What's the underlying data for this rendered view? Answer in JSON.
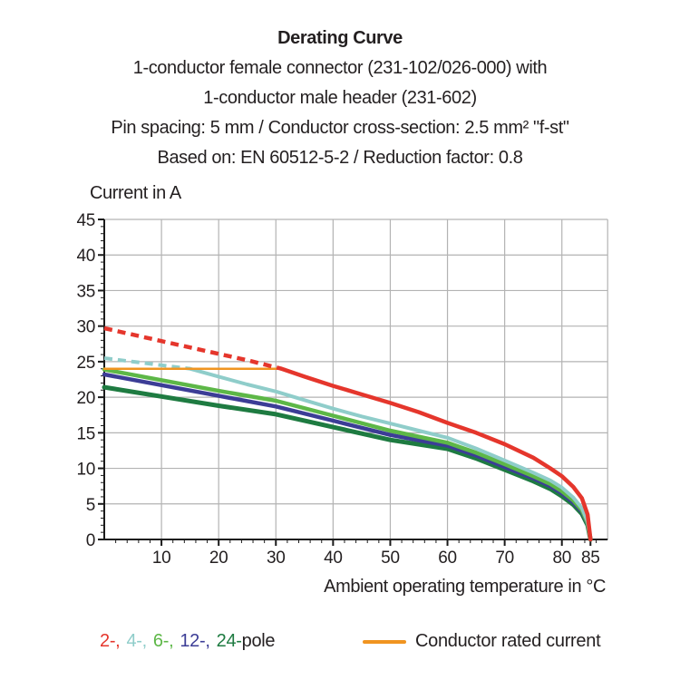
{
  "header": {
    "title": "Derating Curve",
    "line1": "1-conductor female connector (231-102/026-000) with",
    "line2": "1-conductor male header (231-602)",
    "line3": "Pin spacing: 5 mm / Conductor cross-section: 2.5 mm² \"f-st\"",
    "line4": "Based on: EN 60512-5-2 / Reduction factor: 0.8"
  },
  "chart_data": {
    "type": "line",
    "title": "Derating Curve",
    "ylabel": "Current in A",
    "xlabel": "Ambient operating temperature in °C",
    "xlim": [
      0,
      88
    ],
    "ylim": [
      0,
      45
    ],
    "x_major_ticks": [
      10,
      20,
      30,
      40,
      50,
      60,
      70,
      80,
      85
    ],
    "x_minor_step": 2,
    "y_major_ticks": [
      0,
      5,
      10,
      15,
      20,
      25,
      30,
      35,
      40,
      45
    ],
    "y_minor_step": 1,
    "grid": true,
    "grid_color": "#b3b3b3",
    "axis_color": "#1a1a1a",
    "series": [
      {
        "name": "24-pole",
        "color": "#1E7B41",
        "width": 5,
        "style": "solid",
        "points": [
          [
            0,
            21.4
          ],
          [
            10,
            20.1
          ],
          [
            20,
            18.8
          ],
          [
            30,
            17.6
          ],
          [
            40,
            15.8
          ],
          [
            50,
            14.0
          ],
          [
            60,
            12.75
          ],
          [
            65,
            11.4
          ],
          [
            70,
            9.8
          ],
          [
            75,
            8.2
          ],
          [
            78,
            7.1
          ],
          [
            80,
            6.1
          ],
          [
            82,
            4.9
          ],
          [
            83.5,
            3.6
          ],
          [
            84.5,
            2.0
          ],
          [
            85,
            0
          ]
        ]
      },
      {
        "name": "12-pole",
        "color": "#3C3D96",
        "width": 4.5,
        "style": "solid",
        "points": [
          [
            0,
            23.2
          ],
          [
            10,
            21.7
          ],
          [
            20,
            20.2
          ],
          [
            30,
            18.7
          ],
          [
            40,
            16.7
          ],
          [
            50,
            14.7
          ],
          [
            60,
            13.2
          ],
          [
            65,
            11.8
          ],
          [
            70,
            10.2
          ],
          [
            75,
            8.6
          ],
          [
            78,
            7.5
          ],
          [
            80,
            6.5
          ],
          [
            82,
            5.2
          ],
          [
            83.5,
            3.9
          ],
          [
            84.5,
            2.2
          ],
          [
            85,
            0
          ]
        ]
      },
      {
        "name": "6-pole",
        "color": "#5DB747",
        "width": 4.5,
        "style": "solid",
        "points": [
          [
            0,
            23.9
          ],
          [
            10,
            22.4
          ],
          [
            20,
            20.9
          ],
          [
            30,
            19.5
          ],
          [
            40,
            17.4
          ],
          [
            50,
            15.3
          ],
          [
            60,
            13.6
          ],
          [
            65,
            12.2
          ],
          [
            70,
            10.6
          ],
          [
            75,
            8.9
          ],
          [
            78,
            7.8
          ],
          [
            80,
            6.8
          ],
          [
            82,
            5.5
          ],
          [
            83.5,
            4.1
          ],
          [
            84.5,
            2.3
          ],
          [
            85,
            0
          ]
        ]
      },
      {
        "name": "4-pole",
        "color": "#8FCDCA",
        "width": 4,
        "style": "dashed-then-solid",
        "dashed_points": [
          [
            0,
            25.5
          ],
          [
            5,
            25.0
          ],
          [
            10,
            24.5
          ],
          [
            15,
            24.0
          ]
        ],
        "points": [
          [
            15,
            24.0
          ],
          [
            20,
            22.9
          ],
          [
            25,
            21.8
          ],
          [
            30,
            20.8
          ],
          [
            35,
            19.6
          ],
          [
            40,
            18.4
          ],
          [
            45,
            17.3
          ],
          [
            50,
            16.3
          ],
          [
            55,
            15.3
          ],
          [
            60,
            14.3
          ],
          [
            65,
            12.8
          ],
          [
            70,
            11.1
          ],
          [
            75,
            9.4
          ],
          [
            78,
            8.3
          ],
          [
            80,
            7.3
          ],
          [
            82,
            5.9
          ],
          [
            83.5,
            4.4
          ],
          [
            84.5,
            2.5
          ],
          [
            85,
            0
          ]
        ]
      },
      {
        "name": "Conductor rated current",
        "color": "#F09420",
        "width": 2.5,
        "style": "solid",
        "points": [
          [
            0,
            24
          ],
          [
            31.5,
            24
          ]
        ]
      },
      {
        "name": "2-pole",
        "color": "#E5362C",
        "width": 4.5,
        "style": "dashed-then-solid",
        "dashed_points": [
          [
            0,
            29.7
          ],
          [
            5,
            28.8
          ],
          [
            10,
            27.9
          ],
          [
            15,
            27.0
          ],
          [
            20,
            26.1
          ],
          [
            25,
            25.2
          ],
          [
            31,
            24.0
          ]
        ],
        "points": [
          [
            31,
            24.0
          ],
          [
            35,
            22.9
          ],
          [
            40,
            21.6
          ],
          [
            45,
            20.4
          ],
          [
            50,
            19.2
          ],
          [
            55,
            17.9
          ],
          [
            60,
            16.4
          ],
          [
            65,
            15.0
          ],
          [
            70,
            13.4
          ],
          [
            75,
            11.5
          ],
          [
            78,
            10.0
          ],
          [
            80,
            8.9
          ],
          [
            82,
            7.4
          ],
          [
            83.5,
            5.8
          ],
          [
            84.5,
            3.5
          ],
          [
            85,
            0
          ]
        ]
      }
    ]
  },
  "legend": {
    "poles": [
      {
        "label": "2-,",
        "color": "#E5362C"
      },
      {
        "label": "4-,",
        "color": "#8FCDCA"
      },
      {
        "label": "6-,",
        "color": "#5DB747"
      },
      {
        "label": "12-,",
        "color": "#3C3D96"
      },
      {
        "label": "24-",
        "color": "#1E7B41"
      },
      {
        "label": "pole",
        "color": "#231F20"
      }
    ],
    "rated": {
      "label": "Conductor rated current",
      "color": "#F09420"
    }
  }
}
